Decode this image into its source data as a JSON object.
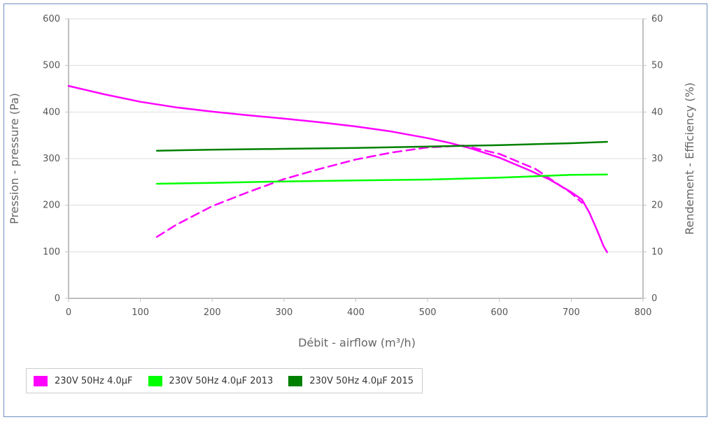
{
  "chart_data": {
    "type": "line",
    "xlabel": "Débit - airflow (m³/h)",
    "ylabel_left": "Pression - pressure (Pa)",
    "ylabel_right": "Rendement - Efficiency (%)",
    "xlim": [
      0,
      800
    ],
    "ylim_left": [
      0,
      600
    ],
    "ylim_right": [
      0,
      60
    ],
    "x_ticks": [
      "0",
      "100",
      "200",
      "300",
      "400",
      "500",
      "600",
      "700",
      "800"
    ],
    "y_left_ticks": [
      "0",
      "100",
      "200",
      "300",
      "400",
      "500",
      "600"
    ],
    "y_right_ticks": [
      "0",
      "10",
      "20",
      "30",
      "40",
      "50",
      "60"
    ],
    "grid": true,
    "legend_position": "bottom-left",
    "series": [
      {
        "name": "230V 50Hz 4.0µF",
        "axis": "left",
        "style": "solid",
        "color": "#ff00ff",
        "x": [
          0,
          50,
          100,
          150,
          200,
          250,
          300,
          350,
          400,
          450,
          500,
          530,
          560,
          600,
          640,
          670,
          700,
          715,
          725,
          735,
          745,
          750
        ],
        "y": [
          456,
          438,
          422,
          410,
          401,
          393,
          386,
          378,
          369,
          358,
          344,
          334,
          322,
          302,
          276,
          255,
          228,
          212,
          185,
          150,
          112,
          99
        ]
      },
      {
        "name": "230V 50Hz 4.0µF",
        "axis": "right",
        "style": "dashed",
        "color": "#ff00ff",
        "x": [
          123,
          150,
          200,
          250,
          300,
          350,
          400,
          450,
          500,
          550,
          600,
          650,
          700,
          715
        ],
        "y": [
          13.2,
          15.8,
          19.8,
          22.8,
          25.6,
          27.8,
          29.8,
          31.3,
          32.4,
          32.8,
          31.0,
          27.8,
          22.6,
          20.5
        ]
      },
      {
        "name": "230V 50Hz 4.0µF 2013",
        "axis": "left",
        "style": "solid",
        "color": "#00ff00",
        "x": [
          123,
          200,
          300,
          400,
          500,
          600,
          700,
          750
        ],
        "y": [
          246,
          248,
          251,
          253,
          255,
          259,
          265,
          266
        ]
      },
      {
        "name": "230V 50Hz 4.0µF 2015",
        "axis": "left",
        "style": "solid",
        "color": "#008000",
        "x": [
          123,
          200,
          300,
          400,
          500,
          600,
          700,
          750
        ],
        "y": [
          317,
          319,
          321,
          323,
          326,
          329,
          333,
          336
        ]
      }
    ]
  },
  "legend": {
    "items": [
      {
        "label": "230V 50Hz 4.0µF",
        "color": "#ff00ff"
      },
      {
        "label": "230V 50Hz 4.0µF 2013",
        "color": "#00ff00"
      },
      {
        "label": "230V 50Hz 4.0µF 2015",
        "color": "#008000"
      }
    ]
  }
}
